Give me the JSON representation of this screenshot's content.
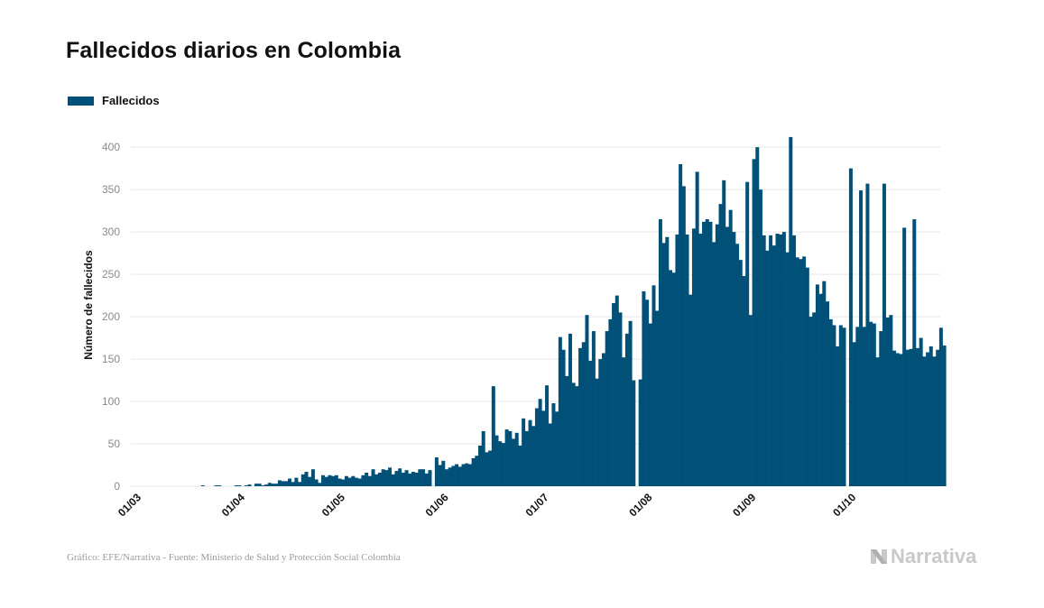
{
  "title": "Fallecidos diarios en Colombia",
  "legend": {
    "label": "Fallecidos",
    "color": "#005078"
  },
  "footer": {
    "source": "Gráfico: EFE/Narrativa - Fuente: Ministerio de Salud y Protección Social Colombia"
  },
  "brand": {
    "name": "Narrativa",
    "icon": "narrativa-logo-icon"
  },
  "chart_data": {
    "type": "bar",
    "title": "Fallecidos diarios en Colombia",
    "xlabel": "",
    "ylabel": "Número de fallecidos",
    "x_start": "2020-03-01",
    "ylim": [
      0,
      430
    ],
    "yticks": [
      0,
      50,
      100,
      150,
      200,
      250,
      300,
      350,
      400
    ],
    "xticks": [
      {
        "label": "01/03",
        "date": "2020-03-01"
      },
      {
        "label": "01/04",
        "date": "2020-04-01"
      },
      {
        "label": "01/05",
        "date": "2020-05-01"
      },
      {
        "label": "01/06",
        "date": "2020-06-01"
      },
      {
        "label": "01/07",
        "date": "2020-07-01"
      },
      {
        "label": "01/08",
        "date": "2020-08-01"
      },
      {
        "label": "01/09",
        "date": "2020-09-01"
      },
      {
        "label": "01/10",
        "date": "2020-10-01"
      }
    ],
    "grid": true,
    "legend_position": "top-left",
    "series": [
      {
        "name": "Fallecidos",
        "color": "#005078",
        "values": [
          0,
          0,
          0,
          0,
          0,
          0,
          0,
          0,
          0,
          0,
          0,
          0,
          0,
          0,
          0,
          0,
          0,
          0,
          0,
          0,
          0,
          1,
          0,
          0,
          0,
          1,
          1,
          0,
          0,
          0,
          0,
          1,
          1,
          0,
          1,
          2,
          0,
          3,
          3,
          1,
          2,
          4,
          3,
          3,
          7,
          6,
          6,
          9,
          5,
          10,
          5,
          14,
          17,
          11,
          20,
          8,
          4,
          13,
          11,
          13,
          12,
          13,
          9,
          8,
          12,
          10,
          12,
          10,
          9,
          13,
          16,
          12,
          20,
          14,
          16,
          20,
          19,
          22,
          14,
          18,
          21,
          16,
          19,
          15,
          17,
          16,
          20,
          20,
          15,
          19,
          0,
          34,
          25,
          30,
          20,
          22,
          24,
          26,
          23,
          26,
          27,
          26,
          33,
          36,
          48,
          65,
          40,
          42,
          118,
          60,
          53,
          51,
          67,
          65,
          56,
          63,
          48,
          80,
          65,
          78,
          71,
          92,
          103,
          89,
          119,
          74,
          98,
          88,
          176,
          161,
          130,
          180,
          122,
          118,
          163,
          170,
          202,
          148,
          183,
          127,
          150,
          157,
          183,
          197,
          216,
          225,
          205,
          152,
          180,
          195,
          125,
          0,
          126,
          230,
          220,
          192,
          237,
          207,
          315,
          287,
          294,
          255,
          252,
          297,
          380,
          354,
          297,
          226,
          304,
          371,
          298,
          312,
          315,
          312,
          288,
          309,
          333,
          361,
          306,
          326,
          300,
          286,
          267,
          248,
          359,
          202,
          386,
          400,
          350,
          296,
          278,
          296,
          284,
          298,
          297,
          300,
          276,
          412,
          296,
          270,
          268,
          271,
          258,
          200,
          205,
          238,
          227,
          242,
          218,
          197,
          190,
          165,
          190,
          187,
          0,
          375,
          170,
          188,
          349,
          188,
          357,
          194,
          192,
          152,
          183,
          357,
          199,
          202,
          160,
          157,
          156,
          305,
          161,
          162,
          315,
          163,
          175,
          153,
          158,
          165,
          153,
          161,
          187,
          166
        ]
      }
    ]
  }
}
